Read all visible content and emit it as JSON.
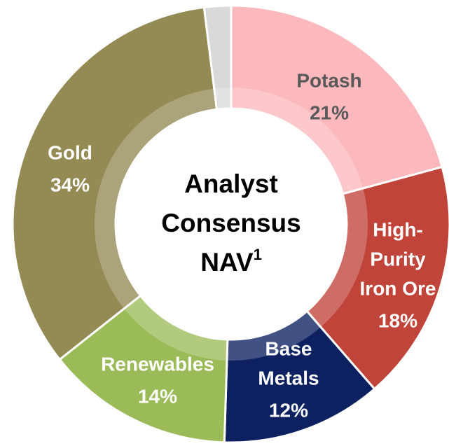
{
  "chart_data": {
    "type": "donut",
    "center_label": {
      "lines": [
        "Analyst",
        "Consensus",
        "NAV"
      ],
      "superscript": "1"
    },
    "categories": [
      [
        "Potash"
      ],
      [
        "High-",
        "Purity",
        "Iron Ore"
      ],
      [
        "Base",
        "Metals"
      ],
      [
        "Renewables"
      ],
      [
        "Gold"
      ],
      null
    ],
    "values": [
      21,
      18,
      12,
      14,
      34,
      2
    ],
    "value_labels": [
      "21%",
      "18%",
      "12%",
      "14%",
      "34%",
      null
    ],
    "colors": [
      "#fbb9bd",
      "#c0443a",
      "#0d2160",
      "#9bbb59",
      "#948a54",
      "#d9d9d9"
    ],
    "label_colors": [
      "#595959",
      "#ffffff",
      "#ffffff",
      "#ffffff",
      "#ffffff",
      null
    ]
  }
}
